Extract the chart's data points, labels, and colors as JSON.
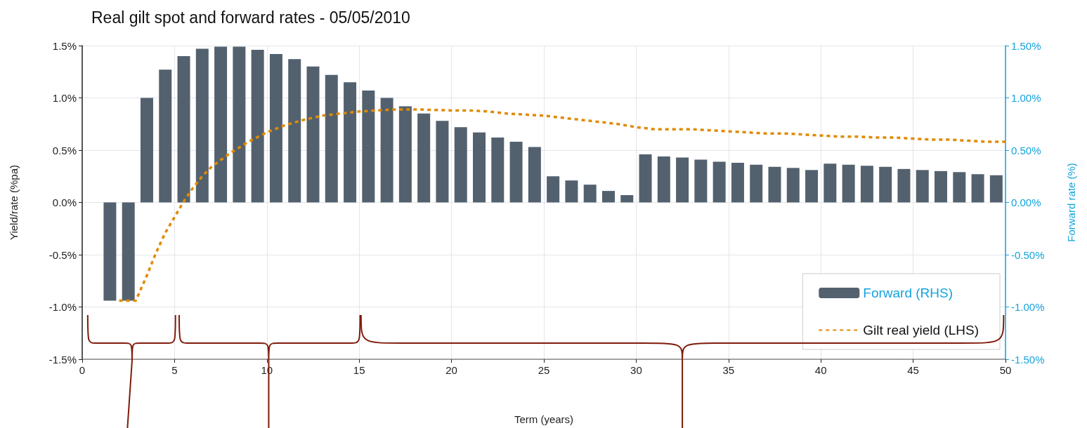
{
  "chart_data": {
    "type": "bar",
    "title": "Real gilt spot and forward rates - 05/05/2010",
    "xlabel": "Term (years)",
    "ylabel": "Yield/rate (%pa)",
    "y2label": "Forward rate (%)",
    "xlim": [
      0,
      50
    ],
    "xticks": [
      0,
      5,
      10,
      15,
      20,
      25,
      30,
      35,
      40,
      45,
      50
    ],
    "ylim": [
      -1.5,
      1.5
    ],
    "yticks": [
      {
        "value": -1.5,
        "label": "-1.5%"
      },
      {
        "value": -1.0,
        "label": "-1.0%"
      },
      {
        "value": -0.5,
        "label": "-0.5%"
      },
      {
        "value": 0,
        "label": "0.0%"
      },
      {
        "value": 0.5,
        "label": "0.5%"
      },
      {
        "value": 1.0,
        "label": "1.0%"
      },
      {
        "value": 1.5,
        "label": "1.5%"
      }
    ],
    "y2lim": [
      -1.5,
      1.5
    ],
    "y2ticks": [
      {
        "value": -1.5,
        "label": "-1.50%"
      },
      {
        "value": -1.0,
        "label": "-1.00%"
      },
      {
        "value": -0.5,
        "label": "-0.50%"
      },
      {
        "value": 0,
        "label": "0.00%"
      },
      {
        "value": 0.5,
        "label": "0.50%"
      },
      {
        "value": 1.0,
        "label": "1.00%"
      },
      {
        "value": 1.5,
        "label": "1.50%"
      }
    ],
    "grid": true,
    "legend": "bottom right",
    "series": [
      {
        "name": "Forward (RHS)",
        "axis": "y2",
        "color": "#53616f",
        "x": [
          1.5,
          2.5,
          3.5,
          4.5,
          5.5,
          6.5,
          7.5,
          8.5,
          9.5,
          10.5,
          11.5,
          12.5,
          13.5,
          14.5,
          15.5,
          16.5,
          17.5,
          18.5,
          19.5,
          20.5,
          21.5,
          22.5,
          23.5,
          24.5,
          25.5,
          26.5,
          27.5,
          28.5,
          29.5,
          30.5,
          31.5,
          32.5,
          33.5,
          34.5,
          35.5,
          36.5,
          37.5,
          38.5,
          39.5,
          40.5,
          41.5,
          42.5,
          43.5,
          44.5,
          45.5,
          46.5,
          47.5,
          48.5,
          49.5
        ],
        "values": [
          -0.94,
          -0.94,
          1.0,
          1.27,
          1.4,
          1.47,
          1.49,
          1.49,
          1.46,
          1.42,
          1.37,
          1.3,
          1.22,
          1.15,
          1.07,
          1.0,
          0.92,
          0.85,
          0.78,
          0.72,
          0.67,
          0.62,
          0.58,
          0.53,
          0.25,
          0.21,
          0.17,
          0.11,
          0.07,
          0.46,
          0.44,
          0.43,
          0.41,
          0.39,
          0.38,
          0.36,
          0.34,
          0.33,
          0.31,
          0.37,
          0.36,
          0.35,
          0.34,
          0.32,
          0.31,
          0.3,
          0.29,
          0.27,
          0.26
        ]
      },
      {
        "name": "Gilt real yield (LHS)",
        "type": "line",
        "color": "#e08a00",
        "line_style": "dashed",
        "marker": "none",
        "x": [
          2,
          2.9,
          3.5,
          4,
          4.5,
          5,
          5.5,
          6,
          6.5,
          7,
          8,
          9,
          10,
          11,
          12,
          13,
          14,
          15,
          16,
          17,
          18,
          20,
          21,
          22,
          23,
          24,
          25,
          26,
          27,
          28,
          29,
          30,
          31,
          32,
          33,
          34,
          35,
          36,
          37,
          38,
          39,
          40,
          41,
          42,
          43,
          44,
          45,
          46,
          47,
          48,
          49,
          50
        ],
        "values": [
          -0.94,
          -0.94,
          -0.7,
          -0.48,
          -0.29,
          -0.14,
          0.01,
          0.14,
          0.25,
          0.34,
          0.47,
          0.58,
          0.67,
          0.74,
          0.79,
          0.83,
          0.85,
          0.87,
          0.88,
          0.89,
          0.89,
          0.88,
          0.88,
          0.87,
          0.85,
          0.84,
          0.83,
          0.81,
          0.79,
          0.77,
          0.75,
          0.72,
          0.7,
          0.7,
          0.7,
          0.69,
          0.68,
          0.67,
          0.66,
          0.66,
          0.65,
          0.64,
          0.63,
          0.63,
          0.62,
          0.62,
          0.61,
          0.6,
          0.6,
          0.59,
          0.58,
          0.58
        ]
      }
    ]
  }
}
